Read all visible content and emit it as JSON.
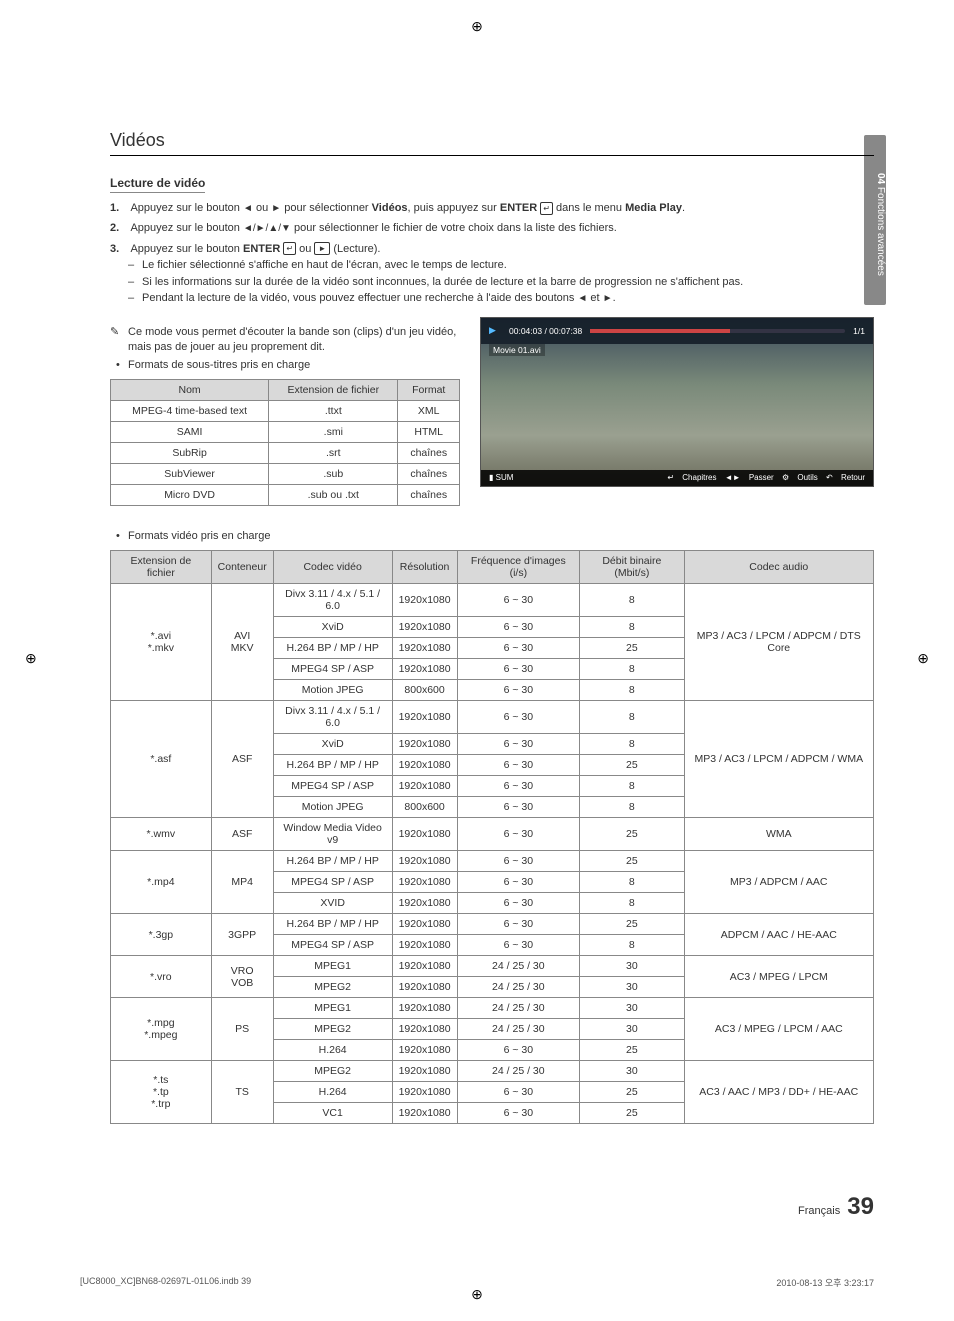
{
  "sidebar": {
    "chapter_num": "04",
    "chapter_title": "Fonctions avancées"
  },
  "title": "Vidéos",
  "subtitle": "Lecture de vidéo",
  "steps": {
    "s1a": "Appuyez sur le bouton ",
    "s1b": " ou ",
    "s1c": " pour sélectionner ",
    "s1_bold1": "Vidéos",
    "s1d": ", puis appuyez sur ",
    "s1_bold2": "ENTER",
    "s1e": " dans le menu ",
    "s1_bold3": "Media Play",
    "s2a": "Appuyez sur le bouton ",
    "s2b": " pour sélectionner le fichier de votre choix dans la liste des fichiers.",
    "s3a": "Appuyez sur le bouton ",
    "s3_bold": "ENTER",
    "s3b": " ou ",
    "s3c": " (Lecture)."
  },
  "dashes": {
    "d1": "Le fichier sélectionné s'affiche en haut de l'écran, avec le temps de lecture.",
    "d2": "Si les informations sur la durée de la vidéo sont inconnues, la durée de lecture et la barre de progression ne s'affichent pas.",
    "d3a": "Pendant la lecture de la vidéo, vous pouvez effectuer une recherche à l'aide des boutons ",
    "d3b": " et "
  },
  "note": {
    "l1": "Ce mode vous permet d'écouter la bande son (clips) d'un jeu vidéo,",
    "l2": "mais pas de jouer au jeu proprement dit."
  },
  "bullet1": "Formats de sous-titres pris en charge",
  "bullet2": "Formats vidéo pris en charge",
  "subtitle_table": {
    "headers": [
      "Nom",
      "Extension de fichier",
      "Format"
    ],
    "rows": [
      [
        "MPEG-4 time-based text",
        ".ttxt",
        "XML"
      ],
      [
        "SAMI",
        ".smi",
        "HTML"
      ],
      [
        "SubRip",
        ".srt",
        "chaînes"
      ],
      [
        "SubViewer",
        ".sub",
        "chaînes"
      ],
      [
        "Micro DVD",
        ".sub ou .txt",
        "chaînes"
      ]
    ]
  },
  "preview": {
    "time": "00:04:03 / 00:07:38",
    "count": "1/1",
    "filename": "Movie 01.avi",
    "sum_label": "SUM",
    "controls": {
      "chap": "Chapitres",
      "skip": "Passer",
      "tools": "Outils",
      "back": "Retour"
    }
  },
  "video_table": {
    "headers": [
      "Extension de fichier",
      "Conteneur",
      "Codec vidéo",
      "Résolution",
      "Fréquence d'images (i/s)",
      "Débit binaire (Mbit/s)",
      "Codec audio"
    ],
    "groups": [
      {
        "ext": "*.avi\n*.mkv",
        "cont": "AVI\nMKV",
        "audio": "MP3 / AC3 / LPCM / ADPCM / DTS Core",
        "rows": [
          [
            "Divx 3.11 / 4.x / 5.1 / 6.0",
            "1920x1080",
            "6 ~ 30",
            "8"
          ],
          [
            "XviD",
            "1920x1080",
            "6 ~ 30",
            "8"
          ],
          [
            "H.264 BP / MP / HP",
            "1920x1080",
            "6 ~ 30",
            "25"
          ],
          [
            "MPEG4 SP / ASP",
            "1920x1080",
            "6 ~ 30",
            "8"
          ],
          [
            "Motion JPEG",
            "800x600",
            "6 ~ 30",
            "8"
          ]
        ]
      },
      {
        "ext": "*.asf",
        "cont": "ASF",
        "audio": "MP3 / AC3 / LPCM / ADPCM / WMA",
        "rows": [
          [
            "Divx 3.11 / 4.x / 5.1 / 6.0",
            "1920x1080",
            "6 ~ 30",
            "8"
          ],
          [
            "XviD",
            "1920x1080",
            "6 ~ 30",
            "8"
          ],
          [
            "H.264 BP / MP / HP",
            "1920x1080",
            "6 ~ 30",
            "25"
          ],
          [
            "MPEG4 SP / ASP",
            "1920x1080",
            "6 ~ 30",
            "8"
          ],
          [
            "Motion JPEG",
            "800x600",
            "6 ~ 30",
            "8"
          ]
        ]
      },
      {
        "ext": "*.wmv",
        "cont": "ASF",
        "audio": "WMA",
        "rows": [
          [
            "Window Media Video v9",
            "1920x1080",
            "6 ~ 30",
            "25"
          ]
        ]
      },
      {
        "ext": "*.mp4",
        "cont": "MP4",
        "audio": "MP3 / ADPCM / AAC",
        "rows": [
          [
            "H.264 BP / MP / HP",
            "1920x1080",
            "6 ~ 30",
            "25"
          ],
          [
            "MPEG4 SP / ASP",
            "1920x1080",
            "6 ~ 30",
            "8"
          ],
          [
            "XVID",
            "1920x1080",
            "6 ~ 30",
            "8"
          ]
        ]
      },
      {
        "ext": "*.3gp",
        "cont": "3GPP",
        "audio": "ADPCM / AAC / HE-AAC",
        "rows": [
          [
            "H.264 BP / MP / HP",
            "1920x1080",
            "6 ~ 30",
            "25"
          ],
          [
            "MPEG4 SP / ASP",
            "1920x1080",
            "6 ~ 30",
            "8"
          ]
        ]
      },
      {
        "ext": "*.vro",
        "cont": "VRO\nVOB",
        "audio": "AC3 / MPEG / LPCM",
        "rows": [
          [
            "MPEG1",
            "1920x1080",
            "24 / 25 / 30",
            "30"
          ],
          [
            "MPEG2",
            "1920x1080",
            "24 / 25 / 30",
            "30"
          ]
        ]
      },
      {
        "ext": "*.mpg\n*.mpeg",
        "cont": "PS",
        "audio": "AC3 / MPEG / LPCM / AAC",
        "rows": [
          [
            "MPEG1",
            "1920x1080",
            "24 / 25 / 30",
            "30"
          ],
          [
            "MPEG2",
            "1920x1080",
            "24 / 25 / 30",
            "30"
          ],
          [
            "H.264",
            "1920x1080",
            "6 ~ 30",
            "25"
          ]
        ]
      },
      {
        "ext": "*.ts\n*.tp\n*.trp",
        "cont": "TS",
        "audio": "AC3 / AAC / MP3 / DD+ / HE-AAC",
        "rows": [
          [
            "MPEG2",
            "1920x1080",
            "24 / 25 / 30",
            "30"
          ],
          [
            "H.264",
            "1920x1080",
            "6 ~ 30",
            "25"
          ],
          [
            "VC1",
            "1920x1080",
            "6 ~ 30",
            "25"
          ]
        ]
      }
    ]
  },
  "footer": {
    "lang": "Français",
    "page": "39"
  },
  "print": {
    "left": "[UC8000_XC]BN68-02697L-01L06.indb   39",
    "right": "2010-08-13   오후 3:23:17"
  },
  "colors": {
    "header_bg": "#d9d9d9",
    "border": "#888888",
    "sidebar_bg": "#888888",
    "text": "#333333",
    "preview_dark": "#1a2530",
    "progress_fill": "#c44444"
  }
}
